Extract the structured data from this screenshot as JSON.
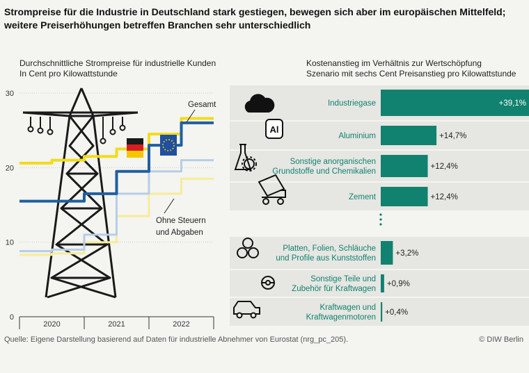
{
  "headline": "Strompreise für die Industrie in Deutschland stark gestiegen, bewegen sich aber im europäischen Mittelfeld; weitere Preiserhöhungen betreffen Branchen sehr unterschiedlich",
  "left_panel": {
    "title": "Durchschnittliche Strompreise für industrielle Kunden",
    "subtitle": "In Cent pro Kilowattstunde"
  },
  "right_panel": {
    "title": "Kostenanstieg im Verhältnis zur Wertschöpfung",
    "subtitle": "Szenario mit sechs Cent Preisanstieg pro Kilowattstunde"
  },
  "source": "Quelle: Eigene Darstellung basierend auf Daten für industrielle Abnehmer von Eurostat (nrg_pc_205).",
  "copyright": "© DIW Berlin",
  "colors": {
    "yellow": "#f2dc1a",
    "yellow_light": "#f6ec98",
    "blue": "#1f5fa0",
    "blue_light": "#b7cde6",
    "teal": "#11826f",
    "band": "#e6e6e2"
  },
  "icons": {
    "industriegase": "cloud-icon",
    "aluminium": "aluminium-icon",
    "chemikalien": "flask-gear-icon",
    "zement": "cement-mixer-icon",
    "kunststoff": "plastic-rolls-icon",
    "kfz_teile": "steering-wheel-icon",
    "kraftwagen": "car-icon",
    "background": "power-pylon-icon"
  },
  "chart_data": [
    {
      "type": "line",
      "title": "Durchschnittliche Strompreise für industrielle Kunden",
      "subtitle": "In Cent pro Kilowattstunde",
      "x": [
        "2020-H1",
        "2020-H2",
        "2021-H1",
        "2021-H2",
        "2022-H1",
        "2022-H2"
      ],
      "xlabel_ticks": [
        "2020",
        "2021",
        "2022"
      ],
      "ylim": [
        0,
        30
      ],
      "yticks": [
        0,
        10,
        20,
        30
      ],
      "series": [
        {
          "name": "Deutschland Gesamt",
          "values": [
            20.6,
            21.0,
            21.5,
            22.5,
            24.5,
            26.6
          ]
        },
        {
          "name": "EU Gesamt",
          "values": [
            15.5,
            15.5,
            16.5,
            19.5,
            23.0,
            26.0
          ]
        },
        {
          "name": "Deutschland Ohne Steuern und Abgaben",
          "values": [
            8.3,
            8.5,
            10.0,
            13.5,
            16.5,
            18.5
          ]
        },
        {
          "name": "EU Ohne Steuern und Abgaben",
          "values": [
            8.8,
            9.0,
            11.0,
            16.5,
            19.5,
            21.0
          ]
        }
      ],
      "annotations": [
        "Gesamt",
        "Ohne Steuern und Abgaben"
      ]
    },
    {
      "type": "bar",
      "orientation": "horizontal",
      "title": "Kostenanstieg im Verhältnis zur Wertschöpfung",
      "subtitle": "Szenario mit sechs Cent Preisanstieg pro Kilowattstunde",
      "categories": [
        "Industriegase",
        "Aluminium",
        "Sonstige anorganischen Grundstoffe und Chemikalien",
        "Zement",
        "Platten, Folien, Schläuche und Profile aus Kunststoffen",
        "Sonstige Teile und Zubehör für Kraftwagen",
        "Kraftwagen und Kraftwagenmotoren"
      ],
      "values": [
        39.1,
        14.7,
        12.4,
        12.4,
        3.2,
        0.9,
        0.4
      ],
      "value_labels": [
        "+39,1%",
        "+14,7%",
        "+12,4%",
        "+12,4%",
        "+3,2%",
        "+0,9%",
        "+0,4%"
      ]
    }
  ]
}
